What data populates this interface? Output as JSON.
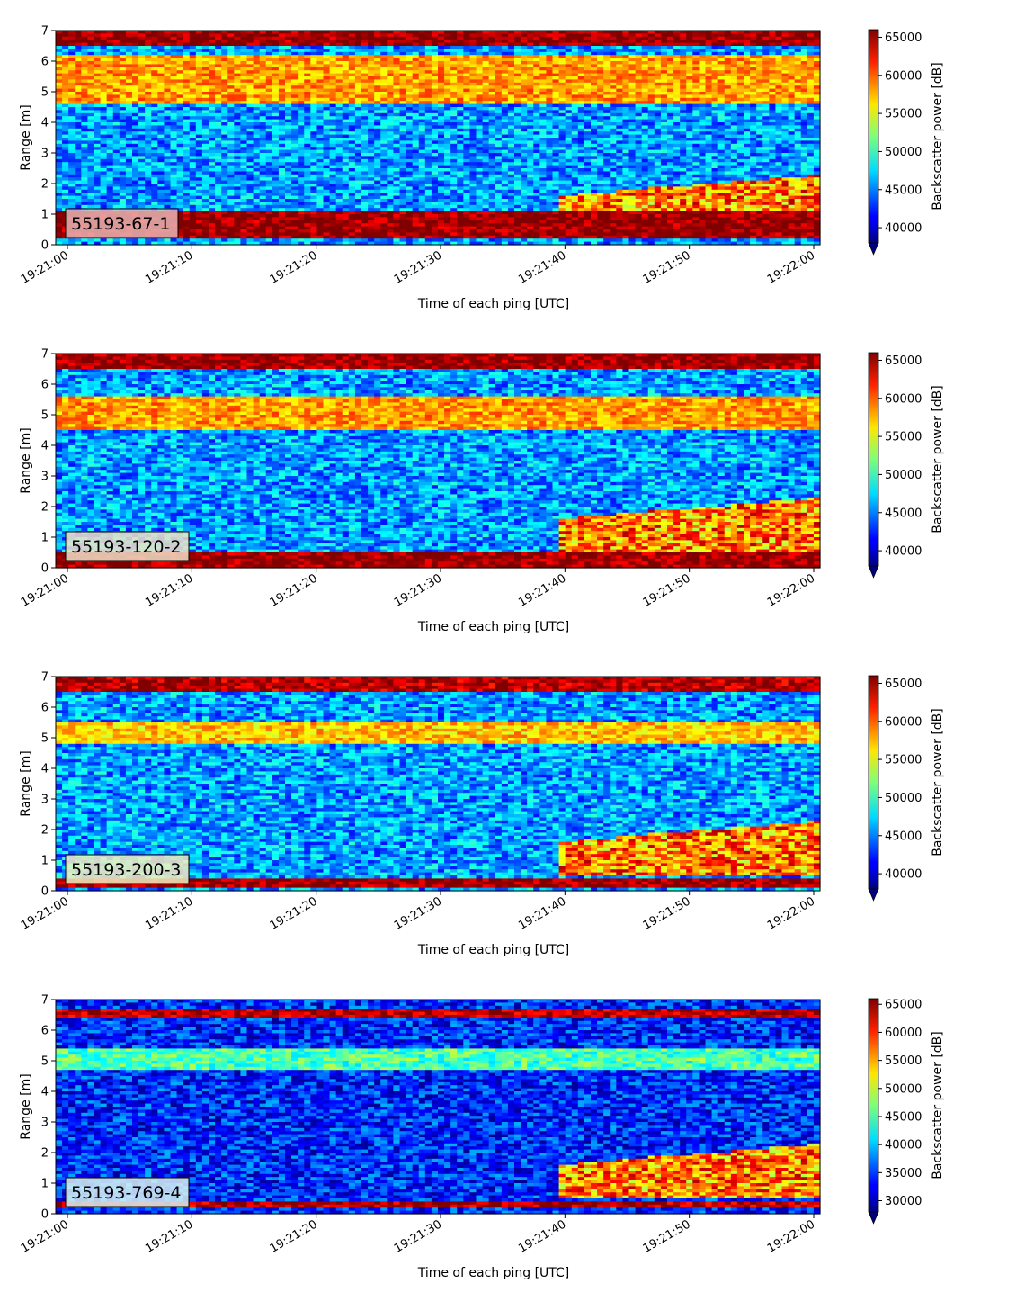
{
  "chart_data": [
    {
      "type": "heatmap",
      "label": "55193-67-1",
      "xlabel": "Time of each ping [UTC]",
      "ylabel": "Range [m]",
      "xticks": [
        "19:21:00",
        "19:21:10",
        "19:21:20",
        "19:21:30",
        "19:21:40",
        "19:21:50",
        "19:22:00"
      ],
      "yticks": [
        "0",
        "1",
        "2",
        "3",
        "4",
        "5",
        "6",
        "7"
      ],
      "ylim": [
        0,
        7
      ],
      "xlim": [
        "19:21:00",
        "19:22:00"
      ],
      "colorbar_label": "Backscatter power [dB]",
      "colorbar_ticks": [
        "40000",
        "45000",
        "50000",
        "55000",
        "60000",
        "65000"
      ],
      "colorbar_range": [
        38000,
        66000
      ],
      "colormap": "jet",
      "label_box_color": "#e8b4b4",
      "layers": [
        {
          "range_m": [
            6.5,
            7.0
          ],
          "description": "surface",
          "level": 0.98
        },
        {
          "range_m": [
            4.6,
            6.2
          ],
          "description": "upper band",
          "level": 0.72
        },
        {
          "range_m": [
            0.2,
            1.1
          ],
          "description": "bottom",
          "level": 0.98
        }
      ]
    },
    {
      "type": "heatmap",
      "label": "55193-120-2",
      "xlabel": "Time of each ping [UTC]",
      "ylabel": "Range [m]",
      "xticks": [
        "19:21:00",
        "19:21:10",
        "19:21:20",
        "19:21:30",
        "19:21:40",
        "19:21:50",
        "19:22:00"
      ],
      "yticks": [
        "0",
        "1",
        "2",
        "3",
        "4",
        "5",
        "6",
        "7"
      ],
      "ylim": [
        0,
        7
      ],
      "xlim": [
        "19:21:00",
        "19:22:00"
      ],
      "colorbar_label": "Backscatter power [dB]",
      "colorbar_ticks": [
        "40000",
        "45000",
        "50000",
        "55000",
        "60000",
        "65000"
      ],
      "colorbar_range": [
        38000,
        66000
      ],
      "colormap": "jet",
      "label_box_color": "#f0e0c8",
      "layers": [
        {
          "range_m": [
            6.5,
            7.0
          ],
          "description": "surface",
          "level": 0.98
        },
        {
          "range_m": [
            4.5,
            5.6
          ],
          "description": "upper band",
          "level": 0.72
        },
        {
          "range_m": [
            0.0,
            0.5
          ],
          "description": "bottom",
          "level": 0.98
        }
      ]
    },
    {
      "type": "heatmap",
      "label": "55193-200-3",
      "xlabel": "Time of each ping [UTC]",
      "ylabel": "Range [m]",
      "xticks": [
        "19:21:00",
        "19:21:10",
        "19:21:20",
        "19:21:30",
        "19:21:40",
        "19:21:50",
        "19:22:00"
      ],
      "yticks": [
        "0",
        "1",
        "2",
        "3",
        "4",
        "5",
        "6",
        "7"
      ],
      "ylim": [
        0,
        7
      ],
      "xlim": [
        "19:21:00",
        "19:22:00"
      ],
      "colorbar_label": "Backscatter power [dB]",
      "colorbar_ticks": [
        "40000",
        "45000",
        "50000",
        "55000",
        "60000",
        "65000"
      ],
      "colorbar_range": [
        38000,
        66000
      ],
      "colormap": "jet",
      "label_box_color": "#f5f0c0",
      "layers": [
        {
          "range_m": [
            6.5,
            7.0
          ],
          "description": "surface",
          "level": 0.95
        },
        {
          "range_m": [
            4.8,
            5.5
          ],
          "description": "upper band",
          "level": 0.68
        },
        {
          "range_m": [
            0.1,
            0.4
          ],
          "description": "bottom",
          "level": 0.98
        }
      ]
    },
    {
      "type": "heatmap",
      "label": "55193-769-4",
      "xlabel": "Time of each ping [UTC]",
      "ylabel": "Range [m]",
      "xticks": [
        "19:21:00",
        "19:21:10",
        "19:21:20",
        "19:21:30",
        "19:21:40",
        "19:21:50",
        "19:22:00"
      ],
      "yticks": [
        "0",
        "1",
        "2",
        "3",
        "4",
        "5",
        "6",
        "7"
      ],
      "ylim": [
        0,
        7
      ],
      "xlim": [
        "19:21:00",
        "19:22:00"
      ],
      "colorbar_label": "Backscatter power [dB]",
      "colorbar_ticks": [
        "30000",
        "35000",
        "40000",
        "45000",
        "50000",
        "55000",
        "60000",
        "65000"
      ],
      "colorbar_range": [
        28000,
        66000
      ],
      "colormap": "jet",
      "label_box_color": "#d8f2f2",
      "layers": [
        {
          "range_m": [
            6.4,
            6.7
          ],
          "description": "surface",
          "level": 0.95
        },
        {
          "range_m": [
            4.7,
            5.4
          ],
          "description": "upper band",
          "level": 0.45
        },
        {
          "range_m": [
            0.2,
            0.35
          ],
          "description": "bottom",
          "level": 0.95
        }
      ]
    }
  ]
}
